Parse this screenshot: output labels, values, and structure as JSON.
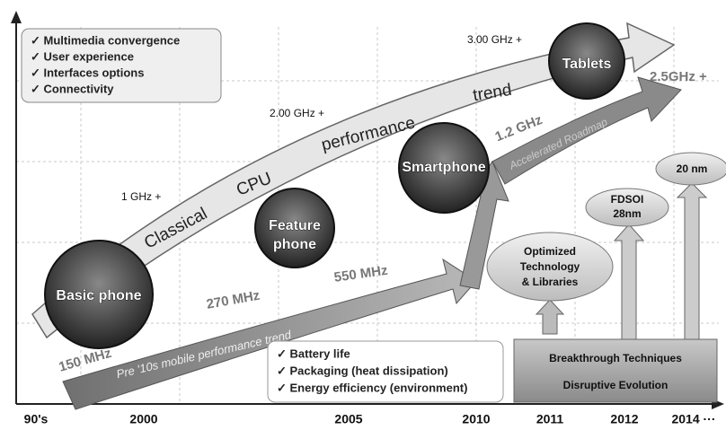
{
  "top_checklist": [
    "✓ Multimedia convergence",
    "✓ User experience",
    "✓ Interfaces options",
    "✓ Connectivity"
  ],
  "classical_trend": {
    "words": [
      "Classical",
      "CPU",
      "performance",
      "trend"
    ],
    "frequencies": [
      "1 GHz +",
      "2.00 GHz +",
      "3.00 GHz +"
    ]
  },
  "mobile_trend": {
    "label": "Pre '10s mobile performance trend",
    "frequencies": [
      "150 MHz",
      "270 MHz",
      "550 MHz"
    ]
  },
  "accelerated": {
    "label": "Accelerated Roadmap",
    "frequencies": [
      "1.2 GHz",
      "2.5GHz +"
    ]
  },
  "devices": {
    "basic": "Basic phone",
    "feature": [
      "Feature",
      "phone"
    ],
    "smartphone": "Smartphone",
    "tablets": "Tablets"
  },
  "bottom_checklist": [
    "✓ Battery life",
    "✓ Packaging (heat dissipation)",
    "✓ Energy efficiency (environment)"
  ],
  "technology": {
    "optimized": [
      "Optimized",
      "Technology",
      "& Libraries"
    ],
    "fdsoi": [
      "FDSOI",
      "28nm"
    ],
    "nm20": "20 nm"
  },
  "breakthrough": [
    "Breakthrough Techniques",
    "Disruptive Evolution"
  ],
  "x_axis": [
    "90's",
    "2000",
    "2005",
    "2010",
    "2011",
    "2012",
    "2014 ···"
  ]
}
